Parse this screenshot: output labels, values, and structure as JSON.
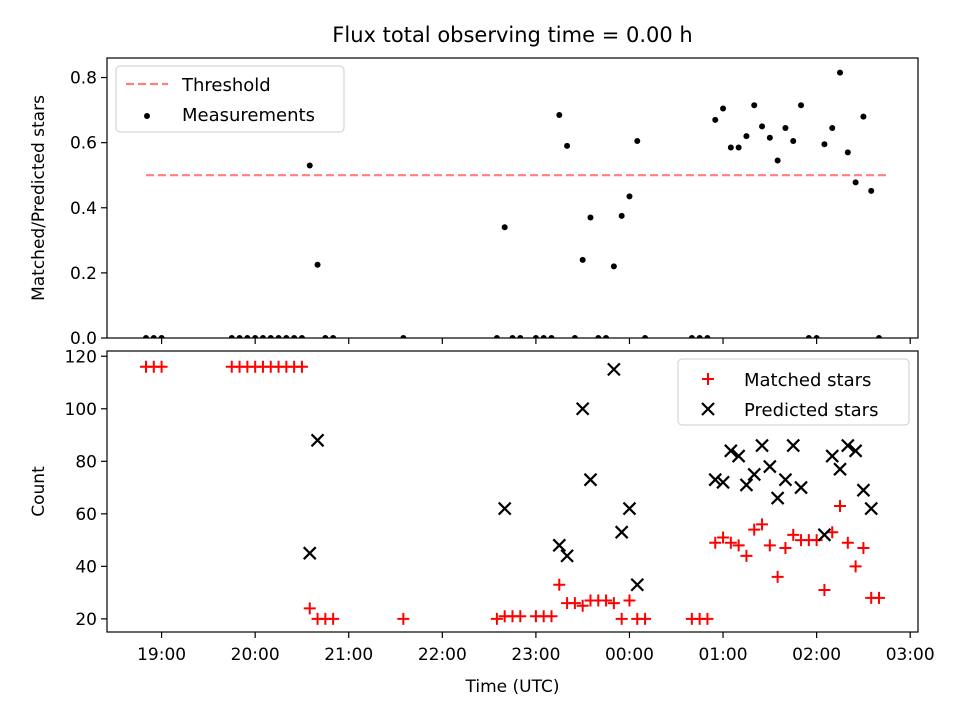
{
  "chart_data": [
    {
      "type": "scatter",
      "title": "Flux total observing time = 0.00 h",
      "xlabel": "",
      "ylabel": "Matched/Predicted stars",
      "x_unit": "time",
      "xlim": [
        "18:25",
        "03:05"
      ],
      "ylim": [
        0,
        0.86
      ],
      "yticks": [
        "0.0",
        "0.2",
        "0.4",
        "0.6",
        "0.8"
      ],
      "legend_position": "top-left",
      "legend": [
        {
          "label": "Threshold",
          "kind": "dashed-line",
          "color": "#ff7f7f"
        },
        {
          "label": "Measurements",
          "kind": "dot",
          "color": "#000000"
        }
      ],
      "threshold": {
        "y": 0.5,
        "x_from": "18:50",
        "x_to": "02:45"
      },
      "series": [
        {
          "name": "Measurements",
          "color": "#000000",
          "points": [
            [
              "18:50",
              0
            ],
            [
              "18:55",
              0
            ],
            [
              "19:00",
              0
            ],
            [
              "19:45",
              0
            ],
            [
              "19:50",
              0
            ],
            [
              "19:55",
              0
            ],
            [
              "20:00",
              0
            ],
            [
              "20:05",
              0
            ],
            [
              "20:10",
              0
            ],
            [
              "20:15",
              0
            ],
            [
              "20:20",
              0
            ],
            [
              "20:25",
              0
            ],
            [
              "20:30",
              0
            ],
            [
              "20:35",
              0.53
            ],
            [
              "20:40",
              0.225
            ],
            [
              "20:45",
              0
            ],
            [
              "20:50",
              0
            ],
            [
              "21:35",
              0
            ],
            [
              "22:35",
              0
            ],
            [
              "22:40",
              0.34
            ],
            [
              "22:45",
              0
            ],
            [
              "22:50",
              0
            ],
            [
              "23:00",
              0
            ],
            [
              "23:05",
              0
            ],
            [
              "23:10",
              0
            ],
            [
              "23:15",
              0.685
            ],
            [
              "23:20",
              0.59
            ],
            [
              "23:25",
              0
            ],
            [
              "23:30",
              0.24
            ],
            [
              "23:35",
              0.37
            ],
            [
              "23:40",
              0
            ],
            [
              "23:45",
              0
            ],
            [
              "23:50",
              0.22
            ],
            [
              "23:55",
              0.375
            ],
            [
              "00:00",
              0.435
            ],
            [
              "00:05",
              0.605
            ],
            [
              "00:10",
              0
            ],
            [
              "00:40",
              0
            ],
            [
              "00:45",
              0
            ],
            [
              "00:50",
              0
            ],
            [
              "00:55",
              0.67
            ],
            [
              "01:00",
              0.705
            ],
            [
              "01:05",
              0.585
            ],
            [
              "01:10",
              0.585
            ],
            [
              "01:15",
              0.62
            ],
            [
              "01:20",
              0.715
            ],
            [
              "01:25",
              0.65
            ],
            [
              "01:30",
              0.615
            ],
            [
              "01:35",
              0.545
            ],
            [
              "01:40",
              0.645
            ],
            [
              "01:45",
              0.605
            ],
            [
              "01:50",
              0.715
            ],
            [
              "01:55",
              0
            ],
            [
              "02:00",
              0
            ],
            [
              "02:05",
              0.595
            ],
            [
              "02:10",
              0.645
            ],
            [
              "02:15",
              0.815
            ],
            [
              "02:20",
              0.57
            ],
            [
              "02:25",
              0.478
            ],
            [
              "02:30",
              0.68
            ],
            [
              "02:35",
              0.452
            ],
            [
              "02:40",
              0
            ]
          ]
        }
      ]
    },
    {
      "type": "scatter",
      "title": "",
      "xlabel": "Time (UTC)",
      "ylabel": "Count",
      "x_unit": "time",
      "xlim": [
        "18:25",
        "03:05"
      ],
      "ylim": [
        15,
        122
      ],
      "yticks": [
        "20",
        "40",
        "60",
        "80",
        "100",
        "120"
      ],
      "xticks": [
        "19:00",
        "20:00",
        "21:00",
        "22:00",
        "23:00",
        "00:00",
        "01:00",
        "02:00",
        "03:00"
      ],
      "legend_position": "top-right",
      "legend": [
        {
          "label": "Matched stars",
          "kind": "plus",
          "color": "#ff0000"
        },
        {
          "label": "Predicted stars",
          "kind": "x",
          "color": "#000000"
        }
      ],
      "series": [
        {
          "name": "Matched stars",
          "marker": "plus",
          "color": "#ff0000",
          "points": [
            [
              "18:50",
              116
            ],
            [
              "18:55",
              116
            ],
            [
              "19:00",
              116
            ],
            [
              "19:45",
              116
            ],
            [
              "19:50",
              116
            ],
            [
              "19:55",
              116
            ],
            [
              "20:00",
              116
            ],
            [
              "20:05",
              116
            ],
            [
              "20:10",
              116
            ],
            [
              "20:15",
              116
            ],
            [
              "20:20",
              116
            ],
            [
              "20:25",
              116
            ],
            [
              "20:30",
              116
            ],
            [
              "20:35",
              24
            ],
            [
              "20:40",
              20
            ],
            [
              "20:45",
              20
            ],
            [
              "20:50",
              20
            ],
            [
              "21:35",
              20
            ],
            [
              "22:35",
              20
            ],
            [
              "22:40",
              21
            ],
            [
              "22:45",
              21
            ],
            [
              "22:50",
              21
            ],
            [
              "23:00",
              21
            ],
            [
              "23:05",
              21
            ],
            [
              "23:10",
              21
            ],
            [
              "23:15",
              33
            ],
            [
              "23:20",
              26
            ],
            [
              "23:25",
              26
            ],
            [
              "23:30",
              25
            ],
            [
              "23:35",
              27
            ],
            [
              "23:40",
              27
            ],
            [
              "23:45",
              27
            ],
            [
              "23:50",
              26
            ],
            [
              "23:55",
              20
            ],
            [
              "00:00",
              27
            ],
            [
              "00:05",
              20
            ],
            [
              "00:10",
              20
            ],
            [
              "00:40",
              20
            ],
            [
              "00:45",
              20
            ],
            [
              "00:50",
              20
            ],
            [
              "00:55",
              49
            ],
            [
              "01:00",
              51
            ],
            [
              "01:05",
              49
            ],
            [
              "01:10",
              48
            ],
            [
              "01:15",
              44
            ],
            [
              "01:20",
              54
            ],
            [
              "01:25",
              56
            ],
            [
              "01:30",
              48
            ],
            [
              "01:35",
              36
            ],
            [
              "01:40",
              47
            ],
            [
              "01:45",
              52
            ],
            [
              "01:50",
              50
            ],
            [
              "01:55",
              50
            ],
            [
              "02:00",
              50
            ],
            [
              "02:05",
              31
            ],
            [
              "02:10",
              53
            ],
            [
              "02:15",
              63
            ],
            [
              "02:20",
              49
            ],
            [
              "02:25",
              40
            ],
            [
              "02:30",
              47
            ],
            [
              "02:35",
              28
            ],
            [
              "02:40",
              28
            ]
          ]
        },
        {
          "name": "Predicted stars",
          "marker": "x",
          "color": "#000000",
          "points": [
            [
              "20:35",
              45
            ],
            [
              "20:40",
              88
            ],
            [
              "22:40",
              62
            ],
            [
              "23:15",
              48
            ],
            [
              "23:20",
              44
            ],
            [
              "23:30",
              100
            ],
            [
              "23:35",
              73
            ],
            [
              "23:50",
              115
            ],
            [
              "23:55",
              53
            ],
            [
              "00:00",
              62
            ],
            [
              "00:05",
              33
            ],
            [
              "00:55",
              73
            ],
            [
              "01:00",
              72
            ],
            [
              "01:05",
              84
            ],
            [
              "01:10",
              82
            ],
            [
              "01:15",
              71
            ],
            [
              "01:20",
              75
            ],
            [
              "01:25",
              86
            ],
            [
              "01:30",
              78
            ],
            [
              "01:35",
              66
            ],
            [
              "01:40",
              73
            ],
            [
              "01:45",
              86
            ],
            [
              "01:50",
              70
            ],
            [
              "02:05",
              52
            ],
            [
              "02:10",
              82
            ],
            [
              "02:15",
              77
            ],
            [
              "02:20",
              86
            ],
            [
              "02:25",
              84
            ],
            [
              "02:30",
              69
            ],
            [
              "02:35",
              62
            ]
          ]
        }
      ]
    }
  ]
}
